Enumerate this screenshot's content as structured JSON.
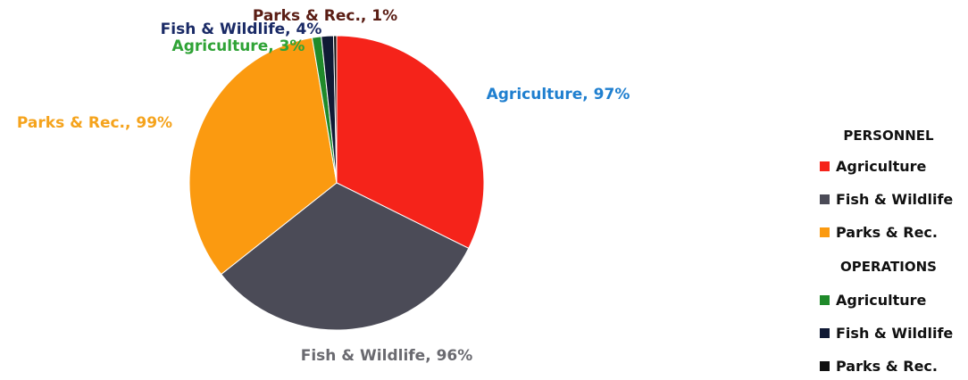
{
  "chart_data": {
    "type": "pie",
    "title": "",
    "groups": [
      {
        "name": "PERSONNEL",
        "items": [
          {
            "name": "Agriculture",
            "percent": 97,
            "label": "Agriculture, 97%",
            "color": "#f5231a",
            "label_color": "#1f7fcf"
          },
          {
            "name": "Fish & Wildlife",
            "percent": 96,
            "label": "Fish & Wildlife, 96%",
            "color": "#4b4b57",
            "label_color": "#6a6a70"
          },
          {
            "name": "Parks & Rec.",
            "percent": 99,
            "label": "Parks & Rec., 99%",
            "color": "#fb9a10",
            "label_color": "#f5a31c"
          }
        ]
      },
      {
        "name": "OPERATIONS",
        "items": [
          {
            "name": "Agriculture",
            "percent": 3,
            "label": "Agriculture, 3%",
            "color": "#1f8a2a",
            "label_color": "#2fa336"
          },
          {
            "name": "Fish & Wildlife",
            "percent": 4,
            "label": "Fish & Wildlife, 4%",
            "color": "#101a35",
            "label_color": "#1a2a66"
          },
          {
            "name": "Parks & Rec.",
            "percent": 1,
            "label": "Parks & Rec., 1%",
            "color": "#111111",
            "label_color": "#5a1d14"
          }
        ]
      }
    ],
    "slice_order": [
      {
        "group": 0,
        "item": 0
      },
      {
        "group": 0,
        "item": 1
      },
      {
        "group": 0,
        "item": 2
      },
      {
        "group": 1,
        "item": 0
      },
      {
        "group": 1,
        "item": 1
      },
      {
        "group": 1,
        "item": 2
      }
    ],
    "legend_position": "right"
  }
}
